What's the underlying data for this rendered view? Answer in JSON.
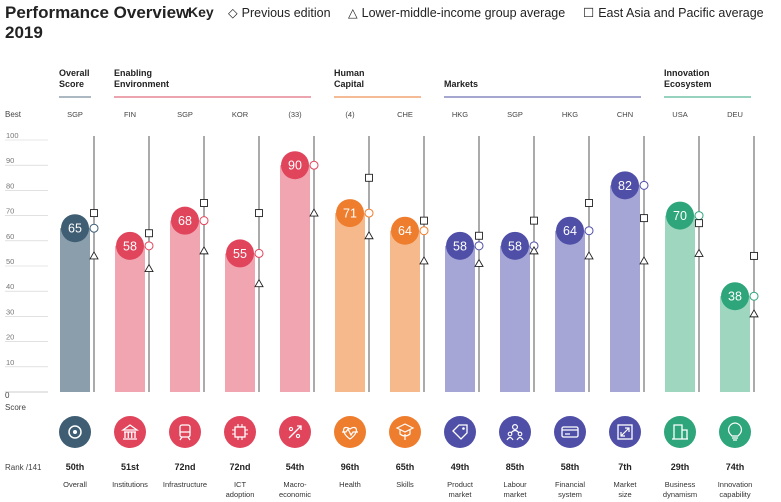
{
  "title_line1": "Performance Overview",
  "title_line2": "2019",
  "key": {
    "label": "Key",
    "previous_edition": "Previous edition",
    "lower_middle": "Lower-middle-income group average",
    "east_asia": "East Asia and Pacific average"
  },
  "row_labels": {
    "best": "Best",
    "score": "Score",
    "rank": "Rank /141",
    "zero": "0"
  },
  "groups": [
    {
      "label_lines": [
        "Overall",
        "Score"
      ],
      "color": "#5a7184"
    },
    {
      "label_lines": [
        "Enabling",
        "Environment"
      ],
      "color": "#d9485f"
    },
    {
      "label_lines": [
        "Human",
        "Capital"
      ],
      "color": "#e8772e"
    },
    {
      "label_lines": [
        "Markets"
      ],
      "color": "#4e4fa3"
    },
    {
      "label_lines": [
        "Innovation",
        "Ecosystem"
      ],
      "color": "#2fa57c"
    }
  ],
  "chart_data": {
    "type": "bar",
    "ylim": [
      0,
      100
    ],
    "yticks": [
      10,
      20,
      30,
      40,
      50,
      60,
      70,
      80,
      90,
      100
    ],
    "categories": [
      {
        "name": "Overall",
        "name_lines": [
          "Overall"
        ],
        "group": 0,
        "best": "SGP",
        "value": 65,
        "previous": 65,
        "lower_middle": 54,
        "east_asia": 71,
        "rank": "50th",
        "bar_color": "#8a9eab",
        "circle_color": "#3f5d73",
        "icon": "gear-icon"
      },
      {
        "name": "Institutions",
        "name_lines": [
          "Institutions"
        ],
        "group": 1,
        "best": "FIN",
        "value": 58,
        "previous": 58,
        "lower_middle": 49,
        "east_asia": 63,
        "rank": "51st",
        "bar_color": "#f0a5b0",
        "circle_color": "#e0455c",
        "icon": "institution-icon"
      },
      {
        "name": "Infrastructure",
        "name_lines": [
          "Infrastructure"
        ],
        "group": 1,
        "best": "SGP",
        "value": 68,
        "previous": 68,
        "lower_middle": 56,
        "east_asia": 75,
        "rank": "72nd",
        "bar_color": "#f0a5b0",
        "circle_color": "#e0455c",
        "icon": "train-icon"
      },
      {
        "name": "ICT adoption",
        "name_lines": [
          "ICT",
          "adoption"
        ],
        "group": 1,
        "best": "KOR",
        "value": 55,
        "previous": 55,
        "lower_middle": 43,
        "east_asia": 71,
        "rank": "72nd",
        "bar_color": "#f0a5b0",
        "circle_color": "#e0455c",
        "icon": "chip-icon"
      },
      {
        "name": "Macro-economic stability",
        "name_lines": [
          "Macro-",
          "economic"
        ],
        "group": 1,
        "best": "(33)",
        "value": 90,
        "previous": 90,
        "lower_middle": 71,
        "east_asia": null,
        "rank": "54th",
        "bar_color": "#f0a5b0",
        "circle_color": "#e0455c",
        "icon": "percent-icon"
      },
      {
        "name": "Health",
        "name_lines": [
          "Health"
        ],
        "group": 2,
        "best": "(4)",
        "value": 71,
        "previous": 71,
        "lower_middle": 62,
        "east_asia": 85,
        "rank": "96th",
        "bar_color": "#f5b98c",
        "circle_color": "#ef7d2e",
        "icon": "heart-icon"
      },
      {
        "name": "Skills",
        "name_lines": [
          "Skills"
        ],
        "group": 2,
        "best": "CHE",
        "value": 64,
        "previous": 64,
        "lower_middle": 52,
        "east_asia": 68,
        "rank": "65th",
        "bar_color": "#f5b98c",
        "circle_color": "#ef7d2e",
        "icon": "graduation-icon"
      },
      {
        "name": "Product market",
        "name_lines": [
          "Product",
          "market"
        ],
        "group": 3,
        "best": "HKG",
        "value": 58,
        "previous": 58,
        "lower_middle": 51,
        "east_asia": 62,
        "rank": "49th",
        "bar_color": "#a5a6d6",
        "circle_color": "#4f4fa8",
        "icon": "tag-icon"
      },
      {
        "name": "Labour market",
        "name_lines": [
          "Labour",
          "market"
        ],
        "group": 3,
        "best": "SGP",
        "value": 58,
        "previous": 58,
        "lower_middle": 56,
        "east_asia": 68,
        "rank": "85th",
        "bar_color": "#a5a6d6",
        "circle_color": "#4f4fa8",
        "icon": "people-icon"
      },
      {
        "name": "Financial system",
        "name_lines": [
          "Financial",
          "system"
        ],
        "group": 3,
        "best": "HKG",
        "value": 64,
        "previous": 64,
        "lower_middle": 54,
        "east_asia": 75,
        "rank": "58th",
        "bar_color": "#a5a6d6",
        "circle_color": "#4f4fa8",
        "icon": "card-icon"
      },
      {
        "name": "Market size",
        "name_lines": [
          "Market",
          "size"
        ],
        "group": 3,
        "best": "CHN",
        "value": 82,
        "previous": 82,
        "lower_middle": 52,
        "east_asia": 69,
        "rank": "7th",
        "bar_color": "#a5a6d6",
        "circle_color": "#4f4fa8",
        "icon": "expand-icon"
      },
      {
        "name": "Business dynamism",
        "name_lines": [
          "Business",
          "dynamism"
        ],
        "group": 4,
        "best": "USA",
        "value": 70,
        "previous": 70,
        "lower_middle": 55,
        "east_asia": 67,
        "rank": "29th",
        "bar_color": "#9fd6bf",
        "circle_color": "#2ea57b",
        "icon": "building-icon"
      },
      {
        "name": "Innovation capability",
        "name_lines": [
          "Innovation",
          "capability"
        ],
        "group": 4,
        "best": "DEU",
        "value": 38,
        "previous": 38,
        "lower_middle": 31,
        "east_asia": 54,
        "rank": "74th",
        "bar_color": "#9fd6bf",
        "circle_color": "#2ea57b",
        "icon": "bulb-icon"
      }
    ]
  }
}
